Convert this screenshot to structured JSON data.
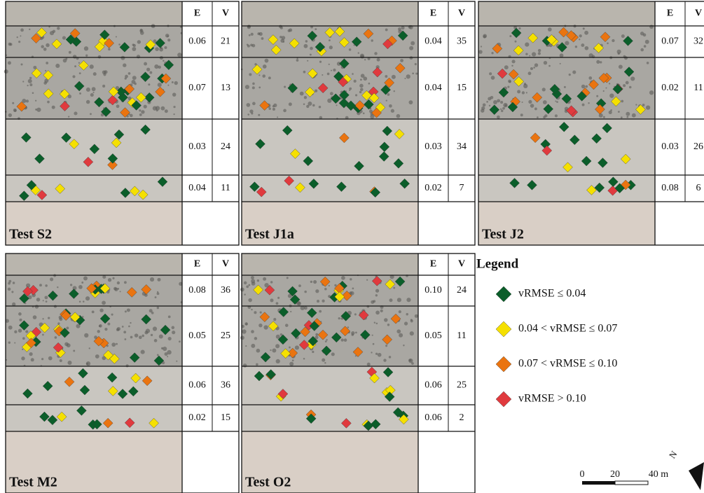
{
  "panels": [
    {
      "title": "Test S2",
      "headers": [
        "E",
        "V"
      ],
      "rows": [
        [
          "0.06",
          "21"
        ],
        [
          "0.07",
          "13"
        ],
        [
          "0.03",
          "24"
        ],
        [
          "0.04",
          "11"
        ]
      ]
    },
    {
      "title": "Test J1a",
      "headers": [
        "E",
        "V"
      ],
      "rows": [
        [
          "0.04",
          "35"
        ],
        [
          "0.04",
          "15"
        ],
        [
          "0.03",
          "34"
        ],
        [
          "0.02",
          "7"
        ]
      ]
    },
    {
      "title": "Test J2",
      "headers": [
        "E",
        "V"
      ],
      "rows": [
        [
          "0.07",
          "32"
        ],
        [
          "0.02",
          "11"
        ],
        [
          "0.03",
          "26"
        ],
        [
          "0.08",
          "6"
        ]
      ]
    },
    {
      "title": "Test M2",
      "headers": [
        "E",
        "V"
      ],
      "rows": [
        [
          "0.08",
          "36"
        ],
        [
          "0.05",
          "25"
        ],
        [
          "0.06",
          "36"
        ],
        [
          "0.02",
          "15"
        ]
      ]
    },
    {
      "title": "Test O2",
      "headers": [
        "E",
        "V"
      ],
      "rows": [
        [
          "0.10",
          "24"
        ],
        [
          "0.05",
          "11"
        ],
        [
          "0.06",
          "25"
        ],
        [
          "0.06",
          "2"
        ]
      ]
    }
  ],
  "legend": {
    "title": "Legend",
    "items": [
      {
        "label": "vRMSE ≤ 0.04",
        "color": "#0b5e2a"
      },
      {
        "label": "0.04 < vRMSE ≤ 0.07",
        "color": "#f5e000"
      },
      {
        "label": "0.07 < vRMSE ≤ 0.10",
        "color": "#ea7410"
      },
      {
        "label": "vRMSE > 0.10",
        "color": "#e03a3e"
      }
    ]
  },
  "scale": {
    "labels": [
      "0",
      "20",
      "40 m"
    ]
  },
  "north": "N"
}
